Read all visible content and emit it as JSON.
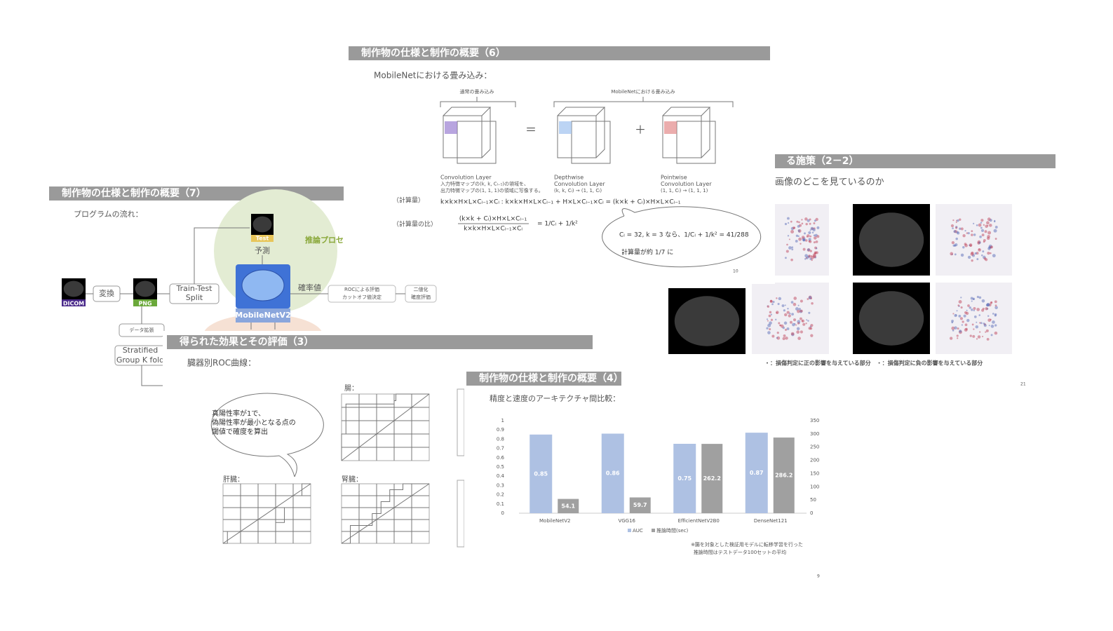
{
  "slide7": {
    "header": "制作物の仕様と制作の概要（7）",
    "subtitle": "プログラムの流れ：",
    "dicom": "DICOM",
    "convert": "変換",
    "png": "PNG",
    "split": [
      "Train-Test",
      "Split"
    ],
    "test": "Test",
    "predict": "予測",
    "inference": "推論プロセ",
    "model": "MobileNetV2",
    "prob": "確率値",
    "roc": [
      "ROCによる評価",
      "カットオフ値決定"
    ],
    "binary": [
      "二値化",
      "確度評価"
    ],
    "augment": "データ拡張",
    "kfold": [
      "Stratified",
      "Group K fold"
    ]
  },
  "slide22": {
    "header": "る施策（2－2）",
    "subtitle": "画像のどこを見ているのか",
    "legend": "・：損傷判定に正の影響を与えている部分　・：損傷判定に負の影響を与えている部分",
    "page": "21"
  },
  "slide6": {
    "header": "制作物の仕様と制作の概要（6）",
    "subtitle": "MobileNetにおける畳み込み：",
    "normal": "通常の畳み込み",
    "mobilenet": "MobileNetにおける畳み込み",
    "conv": [
      "Convolution Layer",
      "入力特徴マップの(k, k, Cₗ₋₁)の領域を、",
      "出力特徴マップの(1, 1, 1)の領域に写像する。"
    ],
    "depthwise": [
      "Depthwise",
      "Convolution Layer",
      "(k, k, Cₗ) → (1, 1, Cₗ)"
    ],
    "pointwise": [
      "Pointwise",
      "Convolution Layer",
      "(1, 1, Cₗ) → (1, 1, 1)"
    ],
    "cost_label": "（計算量）",
    "cost": "k×k×H×L×Cₗ₋₁×Cₗ  :  k×k×H×L×Cₗ₋₁  +  H×L×Cₗ₋₁×Cₗ  =  (k×k + Cₗ)×H×L×Cₗ₋₁",
    "ratio_label": "（計算量の比）",
    "ratio_num": "(k×k + Cₗ)×H×L×Cₗ₋₁",
    "ratio_den": "k×k×H×L×Cₗ₋₁×Cₗ",
    "ratio_rhs": "=   1/Cₗ  +  1/k²",
    "bubble": [
      "Cₗ = 32, k = 3 なら、1/Cₗ + 1/k² = 41/288",
      "計算量が約 1/7 に"
    ],
    "page": "10"
  },
  "slide3": {
    "header": "得られた効果とその評価（3）",
    "subtitle": "臓器別ROC曲線：",
    "bubble": [
      "真陽性率が1で、",
      "偽陽性率が最小となる点の",
      "閾値で確度を算出"
    ],
    "organs": [
      "腸：",
      "肝臓：",
      "腎臓："
    ]
  },
  "slide4": {
    "header": "制作物の仕様と制作の概要（4）",
    "note": [
      "※腸を対象とした検証用モデルに転移学習を行った",
      "推論時間はテストデータ100セットの平均"
    ],
    "page": "9"
  },
  "chart_data": {
    "type": "bar",
    "title": "精度と速度のアーキテクチャ間比較：",
    "categories": [
      "MobileNetV2",
      "VGG16",
      "EfficientNetV2B0",
      "DenseNet121"
    ],
    "series": [
      {
        "name": "AUC",
        "color": "#aec1e3",
        "values": [
          0.85,
          0.86,
          0.75,
          0.87
        ]
      },
      {
        "name": "推論時間(sec)",
        "color": "#a0a0a0",
        "values": [
          54.1,
          59.7,
          262.2,
          286.2
        ],
        "axis": "y2"
      }
    ],
    "ylim": [
      0,
      1
    ],
    "yticks": [
      0,
      0.1,
      0.2,
      0.3,
      0.4,
      0.5,
      0.6,
      0.7,
      0.8,
      0.9,
      1
    ],
    "y2lim": [
      0,
      350
    ],
    "y2ticks": [
      0,
      50,
      100,
      150,
      200,
      250,
      300,
      350
    ]
  }
}
